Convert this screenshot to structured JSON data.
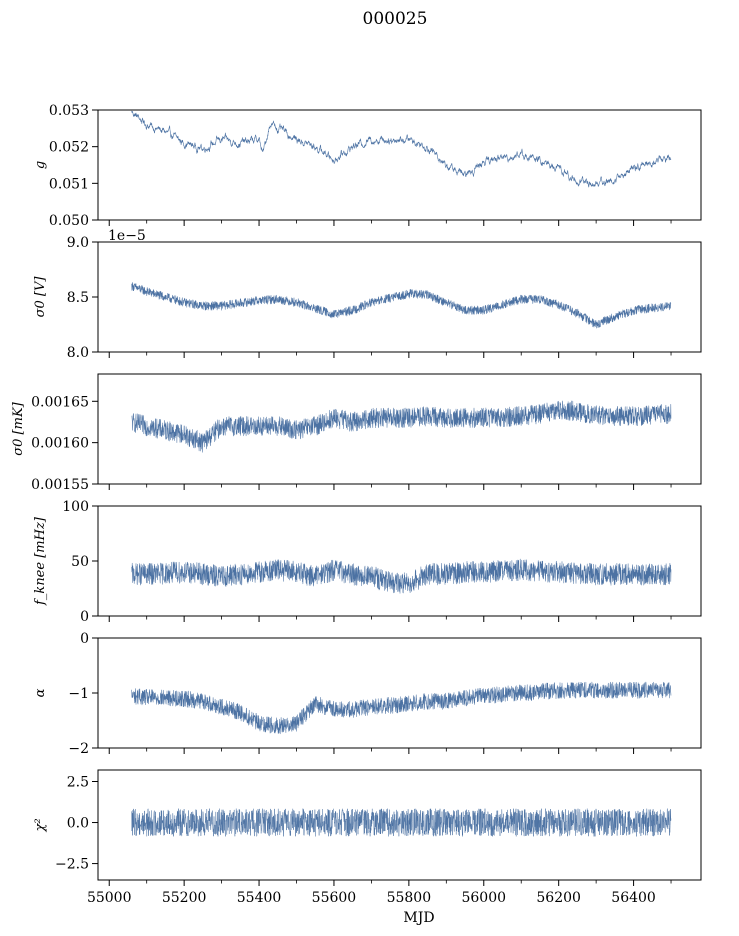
{
  "title": "000025",
  "xlabel": "MJD",
  "colors": {
    "series": "#4c72a3",
    "frame": "#000000"
  },
  "chart_data": [
    {
      "type": "line",
      "ylabel": "g",
      "ylim": [
        0.05,
        0.053
      ],
      "yticks": [
        0.05,
        0.051,
        0.052,
        0.053
      ],
      "ytick_labels": [
        "0.050",
        "0.051",
        "0.052",
        "0.053"
      ],
      "x": [
        55060,
        55100,
        55150,
        55200,
        55250,
        55300,
        55350,
        55400,
        55410,
        55430,
        55450,
        55500,
        55550,
        55600,
        55650,
        55700,
        55750,
        55800,
        55850,
        55900,
        55950,
        56000,
        56050,
        56100,
        56150,
        56200,
        56250,
        56300,
        56350,
        56400,
        56450,
        56500
      ],
      "y": [
        0.05295,
        0.0526,
        0.0524,
        0.0521,
        0.05195,
        0.0522,
        0.0521,
        0.0522,
        0.0518,
        0.05265,
        0.0525,
        0.0522,
        0.052,
        0.05165,
        0.052,
        0.0522,
        0.0522,
        0.0522,
        0.052,
        0.0515,
        0.0512,
        0.0516,
        0.0517,
        0.0518,
        0.0516,
        0.0514,
        0.05105,
        0.051,
        0.0511,
        0.0514,
        0.0516,
        0.0517
      ],
      "noise": 0.0001,
      "stroke_width": 0.6
    },
    {
      "type": "line",
      "ylabel": "σ0 [V]",
      "offset_text": "1e−5",
      "ylim": [
        8.0,
        9.0
      ],
      "yticks": [
        8.0,
        8.5,
        9.0
      ],
      "ytick_labels": [
        "8.0",
        "8.5",
        "9.0"
      ],
      "x": [
        55060,
        55100,
        55200,
        55250,
        55300,
        55400,
        55450,
        55500,
        55600,
        55650,
        55700,
        55800,
        55850,
        55900,
        55950,
        56000,
        56100,
        56150,
        56200,
        56250,
        56300,
        56350,
        56400,
        56500
      ],
      "y": [
        8.6,
        8.55,
        8.45,
        8.42,
        8.42,
        8.47,
        8.48,
        8.45,
        8.34,
        8.38,
        8.45,
        8.53,
        8.52,
        8.45,
        8.38,
        8.38,
        8.48,
        8.48,
        8.43,
        8.35,
        8.25,
        8.32,
        8.38,
        8.42
      ],
      "noise": 0.04,
      "stroke_width": 0.55
    },
    {
      "type": "line",
      "ylabel": "σ0 [mK]",
      "ylim": [
        0.00155,
        0.001683
      ],
      "yticks": [
        0.00155,
        0.0016,
        0.00165
      ],
      "ytick_labels": [
        "0.00155",
        "0.00160",
        "0.00165"
      ],
      "x": [
        55060,
        55100,
        55200,
        55250,
        55300,
        55400,
        55450,
        55500,
        55550,
        55600,
        55650,
        55700,
        55800,
        55850,
        55900,
        55950,
        56000,
        56100,
        56150,
        56200,
        56250,
        56300,
        56400,
        56500
      ],
      "y": [
        0.001625,
        0.00162,
        0.00161,
        0.0016,
        0.00162,
        0.00162,
        0.00162,
        0.001615,
        0.00162,
        0.00163,
        0.001625,
        0.00163,
        0.00163,
        0.001632,
        0.00163,
        0.00163,
        0.00163,
        0.001632,
        0.001635,
        0.00164,
        0.001638,
        0.001633,
        0.001632,
        0.001635
      ],
      "noise": 1.2e-05,
      "stroke_width": 0.55
    },
    {
      "type": "line",
      "ylabel": "f_knee [mHz]",
      "ylim": [
        0,
        100
      ],
      "yticks": [
        0,
        50,
        100
      ],
      "ytick_labels": [
        "0",
        "50",
        "100"
      ],
      "x": [
        55060,
        55100,
        55200,
        55300,
        55400,
        55450,
        55500,
        55550,
        55600,
        55650,
        55700,
        55750,
        55800,
        55850,
        55900,
        55950,
        56000,
        56100,
        56200,
        56300,
        56400,
        56500
      ],
      "y": [
        38,
        38,
        40,
        36,
        40,
        42,
        40,
        36,
        42,
        38,
        36,
        30,
        30,
        38,
        38,
        40,
        40,
        42,
        40,
        38,
        38,
        38
      ],
      "noise": 10,
      "stroke_width": 0.55
    },
    {
      "type": "line",
      "ylabel": "α",
      "ylim": [
        -2,
        0
      ],
      "yticks": [
        -2,
        -1,
        0
      ],
      "ytick_labels": [
        "−2",
        "−1",
        "0"
      ],
      "x": [
        55060,
        55100,
        55200,
        55250,
        55300,
        55350,
        55400,
        55450,
        55500,
        55550,
        55600,
        55650,
        55700,
        55800,
        55850,
        55900,
        56000,
        56100,
        56200,
        56300,
        56400,
        56500
      ],
      "y": [
        -1.05,
        -1.08,
        -1.1,
        -1.15,
        -1.25,
        -1.35,
        -1.55,
        -1.6,
        -1.55,
        -1.2,
        -1.3,
        -1.3,
        -1.25,
        -1.2,
        -1.15,
        -1.15,
        -1.05,
        -1.0,
        -0.95,
        -0.95,
        -0.95,
        -0.95
      ],
      "noise": 0.15,
      "stroke_width": 0.55
    },
    {
      "type": "line",
      "ylabel": "χ²",
      "ylim": [
        -3.5,
        3.2
      ],
      "yticks": [
        -2.5,
        0.0,
        2.5
      ],
      "ytick_labels": [
        "−2.5",
        "0.0",
        "2.5"
      ],
      "x": [
        55060,
        56500
      ],
      "y": [
        0.0,
        0.0
      ],
      "noise": 0.85,
      "stroke_width": 0.5
    }
  ],
  "xaxis": {
    "xlim": [
      54970,
      56580
    ],
    "ticks": [
      55000,
      55200,
      55400,
      55600,
      55800,
      56000,
      56200,
      56400
    ],
    "tick_labels": [
      "55000",
      "55200",
      "55400",
      "55600",
      "55800",
      "56000",
      "56200",
      "56400"
    ],
    "minor_ticks": [
      55100,
      55300,
      55500,
      55700,
      55900,
      56100,
      56300,
      56500
    ]
  }
}
